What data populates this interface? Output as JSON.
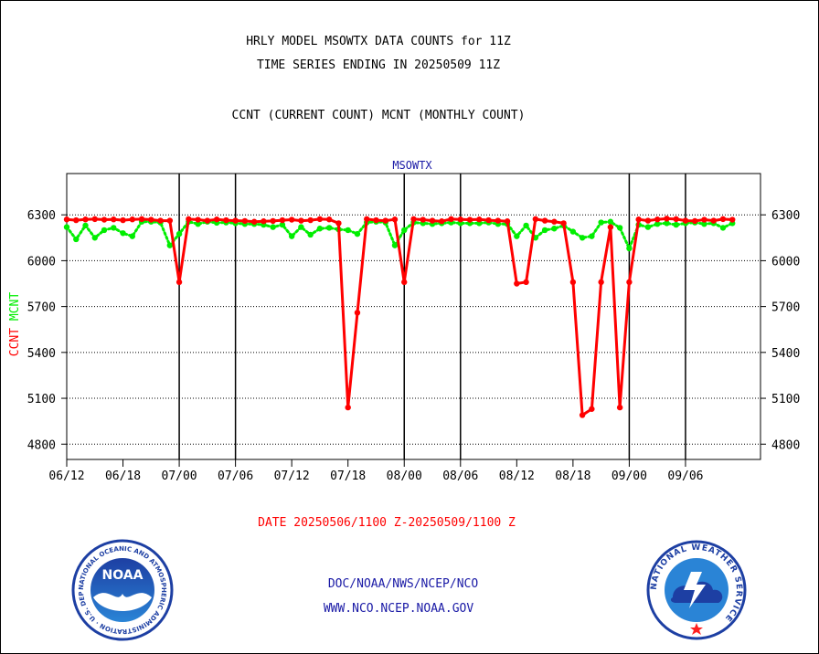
{
  "header": {
    "title_line1": "HRLY MODEL MSOWTX DATA COUNTS for 11Z",
    "title_line2": "TIME SERIES ENDING IN 20250509 11Z",
    "subtitle": "CCNT (CURRENT COUNT) MCNT (MONTHLY COUNT)"
  },
  "date_range": "DATE 20250506/1100 Z-20250509/1100 Z",
  "footer": {
    "line1": "DOC/NOAA/NWS/NCEP/NCO",
    "line2": "WWW.NCO.NCEP.NOAA.GOV"
  },
  "logos": {
    "noaa": {
      "center_text": "NOAA",
      "ring_text": "NATIONAL OCEANIC AND ATMOSPHERIC ADMINISTRATION · U.S. DEPARTMENT OF COMMERCE",
      "colors": {
        "ring": "#ffffff",
        "inner_top": "#1d3fa3",
        "inner_bottom": "#2a84d6"
      }
    },
    "nws": {
      "ring_text": "NATIONAL WEATHER SERVICE",
      "colors": {
        "ring": "#1d3fa3",
        "inner": "#2a84d6"
      }
    }
  },
  "colors": {
    "ccnt": "#ff0000",
    "mcnt": "#00ee00",
    "plot_title": "#1a1aa6",
    "date_text": "#ff0000",
    "footer_text": "#1a1aa6"
  },
  "chart_data": {
    "type": "line",
    "title": "MSOWTX",
    "ylabel_ccnt": "CCNT",
    "ylabel_mcnt": "MCNT",
    "x_start": "06/12",
    "x_end": "09/14",
    "xticks": [
      "06/12",
      "06/18",
      "07/00",
      "07/06",
      "07/12",
      "07/18",
      "08/00",
      "08/06",
      "08/12",
      "08/18",
      "09/00",
      "09/06"
    ],
    "yticks": [
      4800,
      5100,
      5400,
      5700,
      6000,
      6300
    ],
    "ylim": [
      4700,
      6570
    ],
    "grid": "horizontal dotted",
    "series": [
      {
        "name": "CCNT",
        "color": "#ff0000",
        "x": [
          "06/12",
          "06/13",
          "06/14",
          "06/15",
          "06/16",
          "06/17",
          "06/18",
          "06/19",
          "06/20",
          "06/21",
          "06/22",
          "06/23",
          "07/00",
          "07/01",
          "07/02",
          "07/03",
          "07/04",
          "07/05",
          "07/06",
          "07/07",
          "07/08",
          "07/09",
          "07/10",
          "07/11",
          "07/12",
          "07/13",
          "07/14",
          "07/15",
          "07/16",
          "07/17",
          "07/18",
          "07/19",
          "07/20",
          "07/21",
          "07/22",
          "07/23",
          "08/00",
          "08/01",
          "08/02",
          "08/03",
          "08/04",
          "08/05",
          "08/06",
          "08/07",
          "08/08",
          "08/09",
          "08/10",
          "08/11",
          "08/12",
          "08/13",
          "08/14",
          "08/15",
          "08/16",
          "08/17",
          "08/18",
          "08/19",
          "08/20",
          "08/21",
          "08/22",
          "08/23",
          "09/00",
          "09/01",
          "09/02",
          "09/03",
          "09/04",
          "09/05",
          "09/06",
          "09/07",
          "09/08",
          "09/09",
          "09/10",
          "09/11"
        ],
        "values": [
          6270,
          6265,
          6270,
          6272,
          6268,
          6270,
          6265,
          6270,
          6272,
          6268,
          6262,
          6262,
          5860,
          6272,
          6268,
          6262,
          6270,
          6265,
          6262,
          6260,
          6255,
          6258,
          6260,
          6265,
          6268,
          6262,
          6265,
          6272,
          6270,
          6245,
          5040,
          5660,
          6272,
          6265,
          6262,
          6270,
          5860,
          6272,
          6268,
          6262,
          6258,
          6272,
          6270,
          6268,
          6270,
          6265,
          6262,
          6258,
          5850,
          5860,
          6272,
          6262,
          6255,
          6245,
          5860,
          4990,
          5030,
          5860,
          6220,
          5040,
          5860,
          6270,
          6262,
          6270,
          6275,
          6272,
          6262,
          6260,
          6268,
          6262,
          6272,
          6268
        ]
      },
      {
        "name": "MCNT",
        "color": "#00ee00",
        "x": [
          "06/12",
          "06/13",
          "06/14",
          "06/15",
          "06/16",
          "06/17",
          "06/18",
          "06/19",
          "06/20",
          "06/21",
          "06/22",
          "06/23",
          "07/00",
          "07/01",
          "07/02",
          "07/03",
          "07/04",
          "07/05",
          "07/06",
          "07/07",
          "07/08",
          "07/09",
          "07/10",
          "07/11",
          "07/12",
          "07/13",
          "07/14",
          "07/15",
          "07/16",
          "07/17",
          "07/18",
          "07/19",
          "07/20",
          "07/21",
          "07/22",
          "07/23",
          "08/00",
          "08/01",
          "08/02",
          "08/03",
          "08/04",
          "08/05",
          "08/06",
          "08/07",
          "08/08",
          "08/09",
          "08/10",
          "08/11",
          "08/12",
          "08/13",
          "08/14",
          "08/15",
          "08/16",
          "08/17",
          "08/18",
          "08/19",
          "08/20",
          "08/21",
          "08/22",
          "08/23",
          "09/00",
          "09/01",
          "09/02",
          "09/03",
          "09/04",
          "09/05",
          "09/06",
          "09/07",
          "09/08",
          "09/09",
          "09/10",
          "09/11"
        ],
        "values": [
          6220,
          6140,
          6230,
          6150,
          6200,
          6215,
          6180,
          6160,
          6255,
          6255,
          6250,
          6100,
          6175,
          6255,
          6240,
          6255,
          6248,
          6250,
          6245,
          6240,
          6240,
          6235,
          6220,
          6235,
          6160,
          6220,
          6170,
          6210,
          6215,
          6205,
          6200,
          6175,
          6250,
          6255,
          6250,
          6100,
          6200,
          6250,
          6245,
          6240,
          6245,
          6250,
          6245,
          6245,
          6245,
          6250,
          6240,
          6240,
          6160,
          6230,
          6150,
          6200,
          6210,
          6230,
          6190,
          6150,
          6160,
          6250,
          6255,
          6215,
          6080,
          6235,
          6220,
          6240,
          6245,
          6235,
          6245,
          6250,
          6240,
          6245,
          6215,
          6245
        ]
      }
    ]
  }
}
